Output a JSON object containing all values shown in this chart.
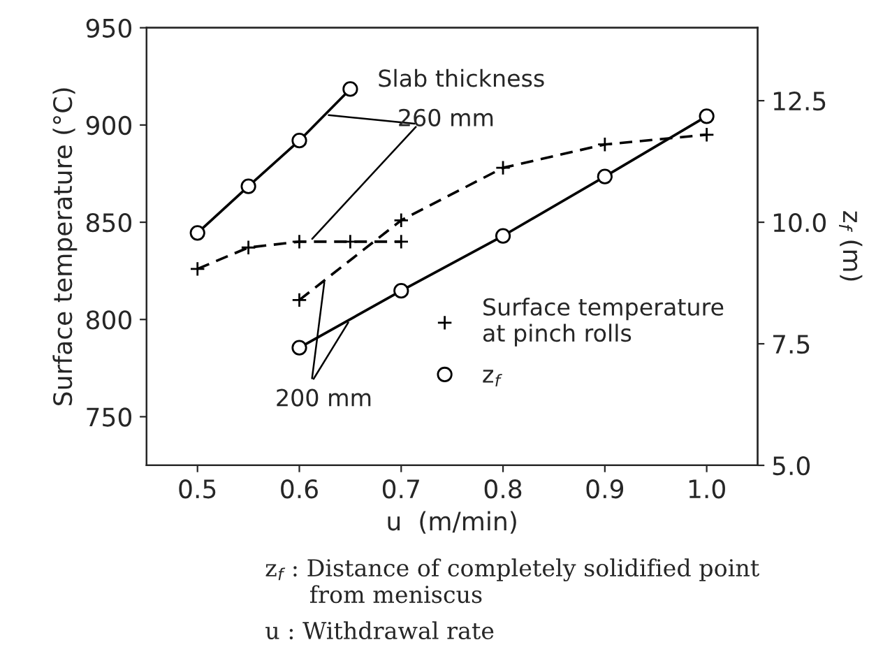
{
  "chart_data": {
    "type": "line",
    "xlabel": "u  (m/min)",
    "ylabel": "Surface temperature (°C)",
    "y2label": "z$_{f}$ (m)",
    "series": [
      {
        "color": "#000000",
        "axis": "y2",
        "marker": "circle",
        "line_style": "solid",
        "x": [
          0.5,
          0.55,
          0.6,
          0.65
        ],
        "values": [
          9.78,
          10.74,
          11.68,
          12.74
        ]
      },
      {
        "color": "#000000",
        "axis": "y",
        "marker": "cross",
        "line_style": "dashed",
        "x": [
          0.5,
          0.55,
          0.6,
          0.65,
          0.7
        ],
        "values": [
          826,
          837,
          840,
          840,
          840
        ]
      },
      {
        "name": "Surface temperature\nat pinch rolls",
        "color": "#000000",
        "axis": "y",
        "marker": "cross",
        "line_style": "dashed",
        "x": [
          0.6,
          0.7,
          0.8,
          0.9,
          1.0
        ],
        "values": [
          810,
          851,
          878,
          890,
          895
        ]
      },
      {
        "name": "z$_{f}$",
        "color": "#000000",
        "axis": "y2",
        "marker": "circle",
        "line_style": "solid",
        "x": [
          0.6,
          0.7,
          0.8,
          0.9,
          1.0
        ],
        "values": [
          7.42,
          8.59,
          9.72,
          10.94,
          12.18
        ]
      }
    ],
    "xlim": [
      0.45,
      1.05
    ],
    "xticks": [
      0.5,
      0.6,
      0.7,
      0.8,
      0.9,
      {
        "value": 1.0,
        "label": "1.0"
      }
    ],
    "ylim": [
      725,
      950
    ],
    "yticks": [
      750,
      800,
      850,
      900,
      950
    ],
    "y2lim": [
      5,
      14
    ],
    "y2ticks": [
      {
        "value": 5,
        "label": "5.0"
      },
      7.5,
      {
        "value": 10,
        "label": "10.0"
      },
      12.5
    ],
    "annotations": [
      "Slab thickness",
      {
        "text": "260 mm",
        "x": 0.61,
        "y": 840
      },
      {
        "text": "200 mm",
        "x": 0.625,
        "y": 821
      },
      "z$_{f}$ : Distance of completely solidified point\n      from meniscus",
      "u : Withdrawal rate"
    ],
    "grid": false,
    "legend": "bottom right"
  }
}
